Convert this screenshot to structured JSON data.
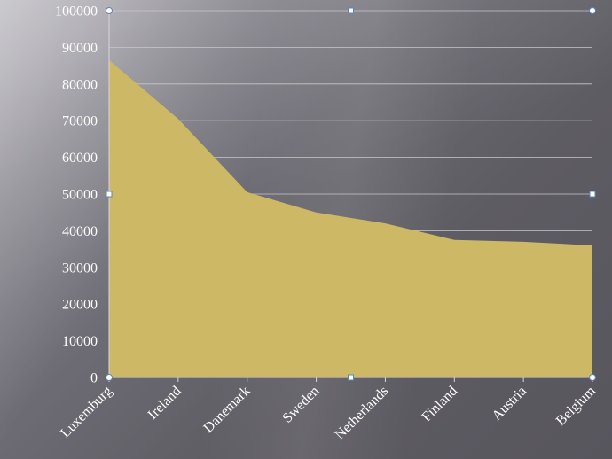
{
  "chart_data": {
    "type": "area",
    "title": "",
    "xlabel": "",
    "ylabel": "",
    "categories": [
      "Luxemburg",
      "Ireland",
      "Danemark",
      "Sweden",
      "Netherlands",
      "Finland",
      "Austria",
      "Belgium"
    ],
    "series": [
      {
        "values": [
          86500,
          70500,
          50500,
          45000,
          42000,
          37500,
          37000,
          36000
        ],
        "color": "#cdb866"
      }
    ],
    "ylim": [
      0,
      100000
    ],
    "yticks": [
      "0",
      "10000",
      "20000",
      "30000",
      "40000",
      "50000",
      "60000",
      "70000",
      "80000",
      "90000",
      "100000"
    ],
    "grid": true,
    "legend": "none"
  },
  "colors": {
    "fill": "#cdb866",
    "grid": "#c9c7cc",
    "text": "#ffffff",
    "handle_border": "#5b86b8"
  }
}
